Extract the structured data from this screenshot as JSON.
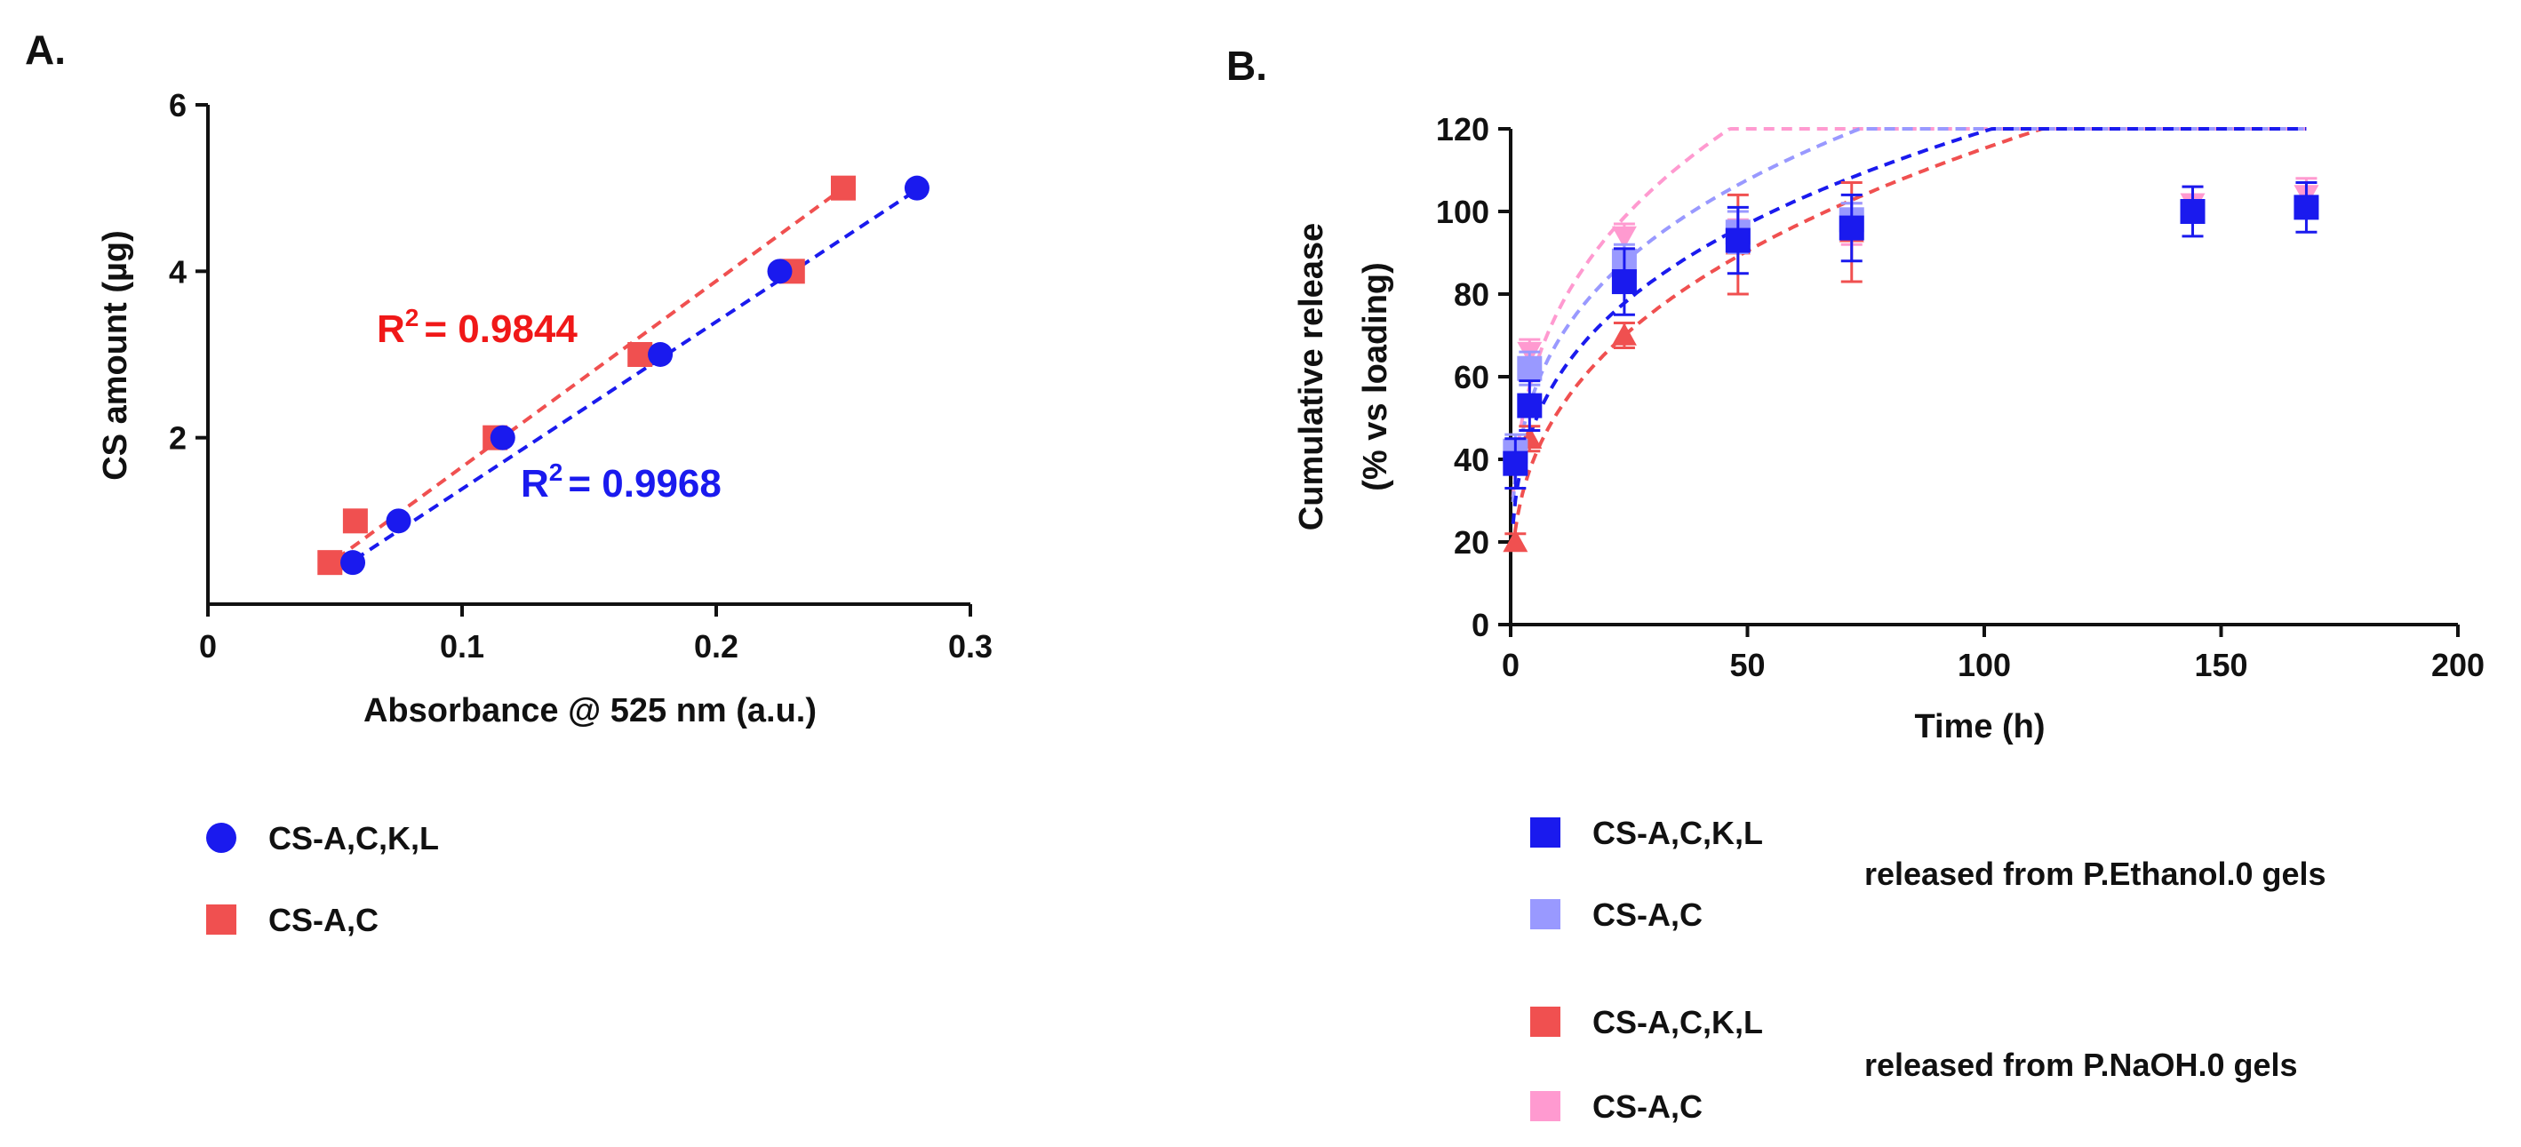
{
  "chart_data": [
    {
      "panel_label": "A.",
      "type": "scatter",
      "xlabel": "Absorbance @ 525 nm (a.u.)",
      "ylabel": "CS amount (µg)",
      "xlim": [
        0,
        0.3
      ],
      "ylim": [
        0,
        6
      ],
      "xticks": [
        "0",
        "0.1",
        "0.2",
        "0.3"
      ],
      "yticks": [
        "2",
        "4",
        "6"
      ],
      "xtick_values": [
        0,
        0.1,
        0.2,
        0.3
      ],
      "ytick_values": [
        2,
        4,
        6
      ],
      "series": [
        {
          "name": "CS-A,C,K,L",
          "color": "#1a1aee",
          "marker": "circle",
          "x": [
            0.057,
            0.075,
            0.116,
            0.178,
            0.225,
            0.279
          ],
          "y": [
            0.5,
            1,
            2,
            3,
            4,
            5
          ],
          "fit": {
            "x": [
              0.052,
              0.28
            ],
            "y": [
              0.42,
              5.0
            ]
          },
          "r2_label": "R",
          "r2_value": "= 0.9968"
        },
        {
          "name": "CS-A,C",
          "color": "#f05050",
          "marker": "square",
          "x": [
            0.048,
            0.058,
            0.113,
            0.17,
            0.23,
            0.25
          ],
          "y": [
            0.5,
            1,
            2,
            3,
            4,
            5
          ],
          "fit": {
            "x": [
              0.045,
              0.25
            ],
            "y": [
              0.42,
              5.0
            ]
          },
          "r2_label": "R",
          "r2_value": "= 0.9844"
        }
      ],
      "r2_superscript": "2"
    },
    {
      "panel_label": "B.",
      "type": "scatter",
      "xlabel": "Time (h)",
      "ylabel_line1": "Cumulative release",
      "ylabel_line2": "(% vs loading)",
      "xlim": [
        0,
        200
      ],
      "ylim": [
        0,
        120
      ],
      "xticks": [
        "0",
        "50",
        "100",
        "150",
        "200"
      ],
      "yticks": [
        "0",
        "20",
        "40",
        "60",
        "80",
        "100",
        "120"
      ],
      "xtick_values": [
        0,
        50,
        100,
        150,
        200
      ],
      "ytick_values": [
        0,
        20,
        40,
        60,
        80,
        100,
        120
      ],
      "series": [
        {
          "name": "CS-A,C,K,L",
          "group": "released from P.Ethanol.0 gels",
          "color": "#1a1aee",
          "marker": "square",
          "x": [
            1,
            4,
            24,
            48,
            72,
            144,
            168
          ],
          "y": [
            39,
            53,
            83,
            93,
            96,
            100,
            101
          ],
          "err": [
            6,
            6,
            8,
            8,
            8,
            6,
            6
          ],
          "fit_a": 30,
          "fit_b": 0.3
        },
        {
          "name": "CS-A,C",
          "group": "released from P.Ethanol.0 gels",
          "color": "#9999ff",
          "marker": "square",
          "x": [
            1,
            4,
            24,
            48,
            72
          ],
          "y": [
            42,
            62,
            88,
            95,
            98
          ],
          "err": [
            4,
            4,
            4,
            5,
            4
          ],
          "fit_a": 36,
          "fit_b": 0.28
        },
        {
          "name": "CS-A,C,K,L",
          "group": "released from P.NaOH.0 gels",
          "color": "#f05050",
          "marker": "triangle",
          "x": [
            1,
            4,
            24,
            48,
            72
          ],
          "y": [
            20,
            45,
            70,
            92,
            95
          ],
          "err": [
            2,
            3,
            3,
            12,
            12
          ],
          "fit_a": 23,
          "fit_b": 0.35
        },
        {
          "name": "CS-A,C",
          "group": "released from P.NaOH.0 gels",
          "color": "#ff9ad0",
          "marker": "triangle-down",
          "x": [
            1,
            4,
            24,
            48,
            72,
            144,
            168
          ],
          "y": [
            40,
            66,
            94,
            94,
            97,
            102,
            104
          ],
          "err": [
            3,
            3,
            3,
            4,
            5,
            4,
            4
          ],
          "fit_a": 38,
          "fit_b": 0.3
        }
      ],
      "legend": {
        "group1": "released from P.Ethanol.0 gels",
        "group2": "released from P.NaOH.0 gels"
      }
    }
  ]
}
